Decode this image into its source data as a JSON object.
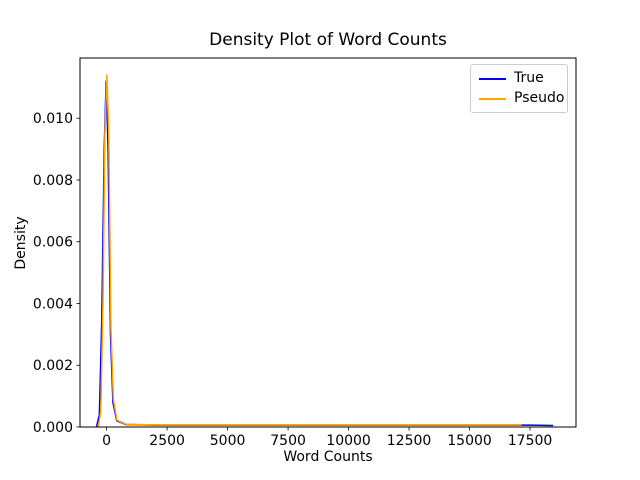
{
  "chart_data": {
    "type": "line",
    "title": "Density Plot of Word Counts",
    "xlabel": "Word Counts",
    "ylabel": "Density",
    "xlim": [
      -1100,
      19400
    ],
    "ylim": [
      0,
      0.01195
    ],
    "grid": false,
    "background_color": "#ffffff",
    "spine_color": "#000000",
    "x_ticks": {
      "values": [
        0,
        2500,
        5000,
        7500,
        10000,
        12500,
        15000,
        17500
      ],
      "labels": [
        "0",
        "2500",
        "5000",
        "7500",
        "10000",
        "12500",
        "15000",
        "17500"
      ]
    },
    "y_ticks": {
      "values": [
        0,
        0.002,
        0.004,
        0.006,
        0.008,
        0.01
      ],
      "labels": [
        "0.000",
        "0.002",
        "0.004",
        "0.006",
        "0.008",
        "0.010"
      ]
    },
    "legend": {
      "position": "upper right",
      "entries": [
        {
          "label": "True",
          "color": "#0000ff"
        },
        {
          "label": "Pseudo",
          "color": "#ffa500"
        }
      ]
    },
    "series": [
      {
        "name": "True",
        "color": "#0000ff",
        "peak": {
          "x": -20,
          "y": 0.0112
        },
        "x": [
          -420,
          -300,
          -200,
          -100,
          -20,
          60,
          160,
          260,
          420,
          800,
          2000,
          5000,
          9000,
          13000,
          16000,
          17500,
          18450
        ],
        "y": [
          0,
          0.0004,
          0.0035,
          0.009,
          0.0112,
          0.009,
          0.003,
          0.0008,
          0.0002,
          8e-05,
          6e-05,
          6e-05,
          6e-05,
          6e-05,
          6e-05,
          6e-05,
          5e-05
        ]
      },
      {
        "name": "Pseudo",
        "color": "#ffa500",
        "peak": {
          "x": 10,
          "y": 0.0114
        },
        "x": [
          -340,
          -240,
          -150,
          -70,
          10,
          90,
          180,
          280,
          430,
          800,
          2000,
          5000,
          9000,
          13000,
          16000,
          17150
        ],
        "y": [
          0,
          0.0005,
          0.004,
          0.0095,
          0.0114,
          0.0095,
          0.0032,
          0.0009,
          0.00022,
          9e-05,
          7e-05,
          7e-05,
          7e-05,
          7e-05,
          7e-05,
          7e-05
        ]
      }
    ]
  }
}
